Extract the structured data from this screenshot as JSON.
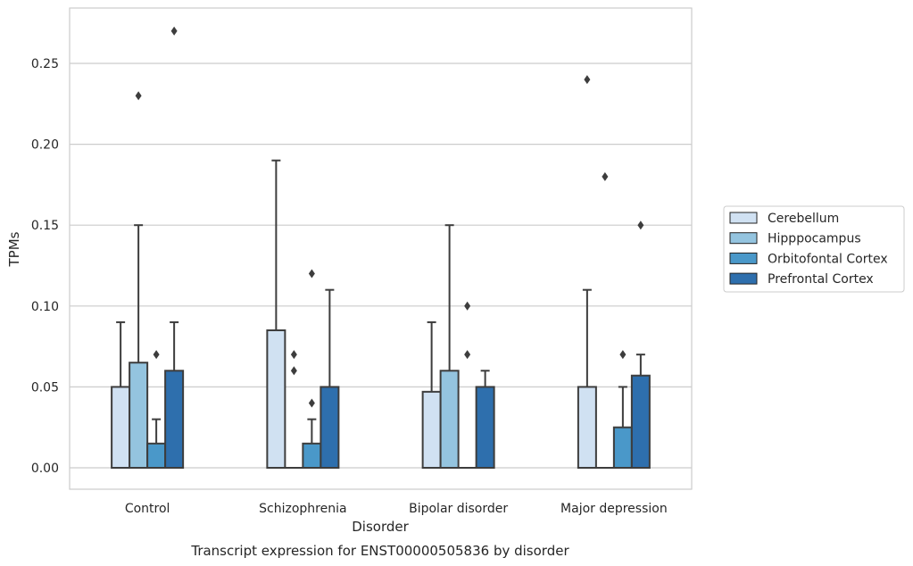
{
  "chart_data": {
    "type": "box",
    "title": "",
    "caption": "Transcript expression for ENST00000505836 by disorder",
    "xlabel": "Disorder",
    "ylabel": "TPMs",
    "ylim": [
      -0.013,
      0.285
    ],
    "yticks": [
      "0.00",
      "0.05",
      "0.10",
      "0.15",
      "0.20",
      "0.25"
    ],
    "ytick_values": [
      0.0,
      0.05,
      0.1,
      0.15,
      0.2,
      0.25
    ],
    "grid": "horizontal",
    "legend_position": "right-outside",
    "categories": [
      "Control",
      "Schizophrenia",
      "Bipolar disorder",
      "Major depression"
    ],
    "series": [
      {
        "name": "Cerebellum",
        "color": "#d0e1f2",
        "boxes": [
          {
            "q1": 0.0,
            "median": 0.0,
            "q3": 0.05,
            "whisker_low": 0.0,
            "whisker_high": 0.09,
            "outliers": []
          },
          {
            "q1": 0.0,
            "median": 0.0,
            "q3": 0.085,
            "whisker_low": 0.0,
            "whisker_high": 0.19,
            "outliers": []
          },
          {
            "q1": 0.0,
            "median": 0.0,
            "q3": 0.047,
            "whisker_low": 0.0,
            "whisker_high": 0.09,
            "outliers": []
          },
          {
            "q1": 0.0,
            "median": 0.0,
            "q3": 0.05,
            "whisker_low": 0.0,
            "whisker_high": 0.11,
            "outliers": [
              0.24
            ]
          }
        ]
      },
      {
        "name": "Hipppocampus",
        "color": "#94c4df",
        "boxes": [
          {
            "q1": 0.0,
            "median": 0.0,
            "q3": 0.065,
            "whisker_low": 0.0,
            "whisker_high": 0.15,
            "outliers": [
              0.23
            ]
          },
          {
            "q1": 0.0,
            "median": 0.0,
            "q3": 0.0,
            "whisker_low": 0.0,
            "whisker_high": 0.0,
            "outliers": [
              0.06,
              0.07
            ]
          },
          {
            "q1": 0.0,
            "median": 0.0,
            "q3": 0.06,
            "whisker_low": 0.0,
            "whisker_high": 0.15,
            "outliers": []
          },
          {
            "q1": 0.0,
            "median": 0.0,
            "q3": 0.0,
            "whisker_low": 0.0,
            "whisker_high": 0.0,
            "outliers": [
              0.18
            ]
          }
        ]
      },
      {
        "name": "Orbitofontal Cortex",
        "color": "#4a98c9",
        "boxes": [
          {
            "q1": 0.0,
            "median": 0.0,
            "q3": 0.015,
            "whisker_low": 0.0,
            "whisker_high": 0.03,
            "outliers": [
              0.07
            ]
          },
          {
            "q1": 0.0,
            "median": 0.0,
            "q3": 0.015,
            "whisker_low": 0.0,
            "whisker_high": 0.03,
            "outliers": [
              0.04,
              0.12
            ]
          },
          {
            "q1": 0.0,
            "median": 0.0,
            "q3": 0.0,
            "whisker_low": 0.0,
            "whisker_high": 0.0,
            "outliers": [
              0.07,
              0.1
            ]
          },
          {
            "q1": 0.0,
            "median": 0.0,
            "q3": 0.025,
            "whisker_low": 0.0,
            "whisker_high": 0.05,
            "outliers": [
              0.07
            ]
          }
        ]
      },
      {
        "name": "Prefrontal Cortex",
        "color": "#2e6fad",
        "boxes": [
          {
            "q1": 0.0,
            "median": 0.0,
            "q3": 0.06,
            "whisker_low": 0.0,
            "whisker_high": 0.09,
            "outliers": [
              0.27
            ]
          },
          {
            "q1": 0.0,
            "median": 0.0,
            "q3": 0.05,
            "whisker_low": 0.0,
            "whisker_high": 0.11,
            "outliers": []
          },
          {
            "q1": 0.0,
            "median": 0.0,
            "q3": 0.05,
            "whisker_low": 0.0,
            "whisker_high": 0.06,
            "outliers": []
          },
          {
            "q1": 0.0,
            "median": 0.0,
            "q3": 0.057,
            "whisker_low": 0.0,
            "whisker_high": 0.07,
            "outliers": [
              0.15
            ]
          }
        ]
      }
    ]
  }
}
